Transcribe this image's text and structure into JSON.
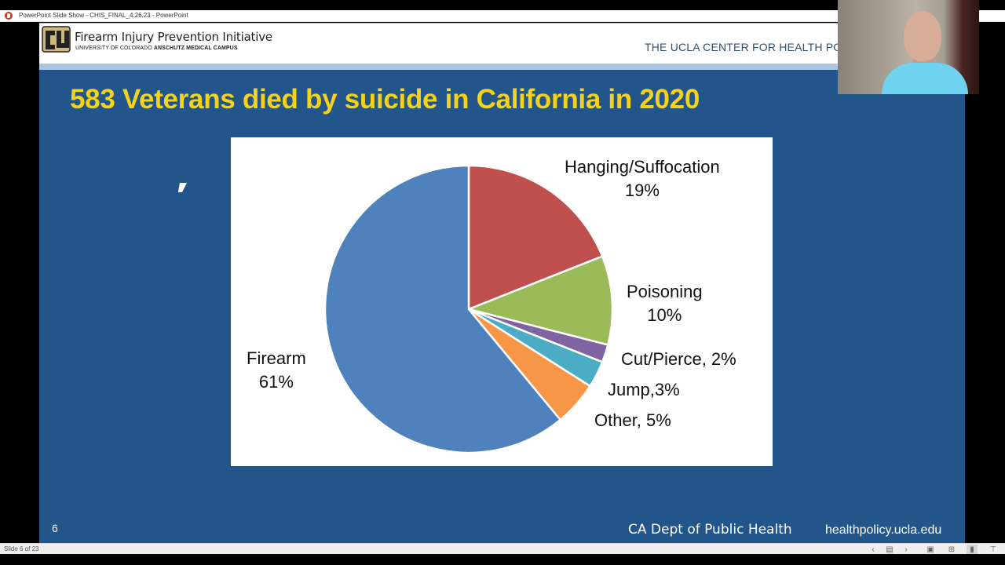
{
  "window": {
    "title": "PowerPoint Slide Show  -  CHIS_FINAL_4.26.23 - PowerPoint",
    "app_icon": "powerpoint-icon"
  },
  "slide": {
    "header": {
      "org_name": "Firearm Injury Prevention Initiative",
      "org_sub_regular": "UNIVERSITY OF COLORADO ",
      "org_sub_bold": "ANSCHUTZ MEDICAL CAMPUS",
      "right_text": "THE UCLA CENTER FOR HEALTH PO",
      "logo": "cu-logo"
    },
    "title": "583 Veterans died by suicide in California in 2020",
    "slide_number": "6",
    "source": "CA Dept of Public Health",
    "site": "healthpolicy.ucla.edu"
  },
  "chart_data": {
    "type": "pie",
    "title": "583 Veterans died by suicide in California in 2020",
    "start_angle": "12 o'clock, clockwise",
    "categories": [
      "Hanging/Suffocation",
      "Poisoning",
      "Cut/Pierce",
      "Jump",
      "Other",
      "Firearm"
    ],
    "values": [
      19,
      10,
      2,
      3,
      5,
      61
    ],
    "unit": "%",
    "colors": [
      "#c0504d",
      "#9bbb59",
      "#8064a2",
      "#4bacc6",
      "#f79646",
      "#4f81bd"
    ],
    "labels": [
      {
        "line1": "Hanging/Suffocation",
        "line2": "19%"
      },
      {
        "line1": "Poisoning",
        "line2": "10%"
      },
      {
        "line1": "Cut/Pierce, 2%",
        "line2": ""
      },
      {
        "line1": "Jump,3%",
        "line2": ""
      },
      {
        "line1": "Other, 5%",
        "line2": ""
      },
      {
        "line1": "Firearm",
        "line2": "61%"
      }
    ],
    "legend": "none (data labels outside)",
    "source": "CA Dept of Public Health"
  },
  "statusbar": {
    "slide_count": "Slide 6 of 23",
    "buttons": [
      {
        "name": "previous-slide-button",
        "glyph": "‹"
      },
      {
        "name": "slide-menu-button",
        "glyph": "▤"
      },
      {
        "name": "next-slide-button",
        "glyph": "›"
      },
      {
        "name": "normal-view-button",
        "glyph": "▣"
      },
      {
        "name": "slide-sorter-button",
        "glyph": "⊞"
      },
      {
        "name": "reading-view-button",
        "glyph": "▮"
      },
      {
        "name": "slide-show-button",
        "glyph": "⊤"
      }
    ]
  },
  "webcam": {
    "label": "presenter video"
  }
}
